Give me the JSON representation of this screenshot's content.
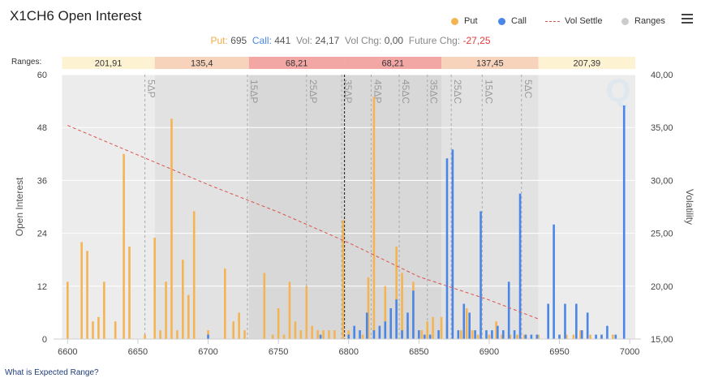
{
  "title": "X1CH6 Open Interest",
  "legend": [
    {
      "label": "Put",
      "color": "#f5b453",
      "kind": "dot"
    },
    {
      "label": "Call",
      "color": "#4a86e8",
      "kind": "dot"
    },
    {
      "label": "Vol Settle",
      "color": "#d9534f",
      "kind": "dash"
    },
    {
      "label": "Ranges",
      "color": "#cccccc",
      "kind": "dot"
    }
  ],
  "summary": {
    "put_label": "Put:",
    "put_value": "695",
    "call_label": "Call:",
    "call_value": "441",
    "vol_label": "Vol:",
    "vol_value": "24,17",
    "volchg_label": "Vol Chg:",
    "volchg_value": "0,00",
    "futchg_label": "Future Chg:",
    "futchg_value": "-27,25"
  },
  "ranges_label": "Ranges:",
  "range_boxes": [
    {
      "label": "201,91",
      "from": 6596,
      "to": 6662,
      "color": "#fdf3d3"
    },
    {
      "label": "135,4",
      "from": 6662,
      "to": 6729,
      "color": "#f7d3bb"
    },
    {
      "label": "68,21",
      "from": 6729,
      "to": 6797,
      "color": "#f2a7a5"
    },
    {
      "label": "68,21",
      "from": 6797,
      "to": 6866,
      "color": "#f2a7a5"
    },
    {
      "label": "137,45",
      "from": 6866,
      "to": 6935,
      "color": "#f7d3bb"
    },
    {
      "label": "207,39",
      "from": 6935,
      "to": 7004,
      "color": "#fdf3d3"
    }
  ],
  "footer_link": "What is Expected Range?",
  "chart_data": {
    "type": "bar",
    "x_axis": {
      "ticks": [
        6600,
        6650,
        6700,
        6750,
        6800,
        6850,
        6900,
        6950,
        7000
      ],
      "range": [
        6590,
        7008
      ]
    },
    "y_left": {
      "label": "Open Interest",
      "range": [
        0,
        60
      ],
      "ticks": [
        0,
        12,
        24,
        36,
        48,
        60
      ]
    },
    "y_right": {
      "label": "Volatility",
      "range": [
        15,
        40
      ],
      "ticks": [
        "15,00",
        "20,00",
        "25,00",
        "30,00",
        "35,00",
        "40,00"
      ]
    },
    "range_bands": [
      {
        "from": 6596,
        "to": 6662,
        "color": "#ececec"
      },
      {
        "from": 6662,
        "to": 6729,
        "color": "#e2e2e2"
      },
      {
        "from": 6729,
        "to": 6797,
        "color": "#d8d8d8"
      },
      {
        "from": 6797,
        "to": 6866,
        "color": "#d8d8d8"
      },
      {
        "from": 6866,
        "to": 6935,
        "color": "#e2e2e2"
      },
      {
        "from": 6935,
        "to": 7004,
        "color": "#ececec"
      }
    ],
    "delta_lines": [
      {
        "label": "5ΔP",
        "x": 6655
      },
      {
        "label": "15ΔP",
        "x": 6728
      },
      {
        "label": "25ΔP",
        "x": 6770
      },
      {
        "label": "35ΔP",
        "x": 6795
      },
      {
        "label": "45ΔP",
        "x": 6816
      },
      {
        "label": "45ΔC",
        "x": 6836
      },
      {
        "label": "35ΔC",
        "x": 6856
      },
      {
        "label": "25ΔC",
        "x": 6873
      },
      {
        "label": "15ΔC",
        "x": 6895
      },
      {
        "label": "5ΔC",
        "x": 6923
      }
    ],
    "settle_line": 6797,
    "series": [
      {
        "name": "Put",
        "color": "#f5b453",
        "points": [
          [
            6600,
            13
          ],
          [
            6610,
            22
          ],
          [
            6614,
            20
          ],
          [
            6618,
            4
          ],
          [
            6622,
            5
          ],
          [
            6626,
            13
          ],
          [
            6634,
            4
          ],
          [
            6640,
            42
          ],
          [
            6644,
            21
          ],
          [
            6655,
            1
          ],
          [
            6662,
            23
          ],
          [
            6666,
            2
          ],
          [
            6670,
            13
          ],
          [
            6674,
            50
          ],
          [
            6678,
            2
          ],
          [
            6682,
            18
          ],
          [
            6686,
            10
          ],
          [
            6690,
            29
          ],
          [
            6700,
            2
          ],
          [
            6712,
            16
          ],
          [
            6718,
            4
          ],
          [
            6722,
            6
          ],
          [
            6726,
            2
          ],
          [
            6740,
            15
          ],
          [
            6746,
            1
          ],
          [
            6750,
            7
          ],
          [
            6754,
            1
          ],
          [
            6758,
            13
          ],
          [
            6762,
            4
          ],
          [
            6766,
            2
          ],
          [
            6770,
            12
          ],
          [
            6774,
            3
          ],
          [
            6778,
            2
          ],
          [
            6782,
            2
          ],
          [
            6786,
            2
          ],
          [
            6790,
            2
          ],
          [
            6796,
            27
          ],
          [
            6800,
            2
          ],
          [
            6810,
            1
          ],
          [
            6814,
            14
          ],
          [
            6818,
            55
          ],
          [
            6822,
            3
          ],
          [
            6826,
            12
          ],
          [
            6830,
            3
          ],
          [
            6834,
            21
          ],
          [
            6838,
            15
          ],
          [
            6842,
            3
          ],
          [
            6846,
            13
          ],
          [
            6852,
            2
          ],
          [
            6856,
            4
          ],
          [
            6860,
            5
          ],
          [
            6866,
            5
          ],
          [
            6870,
            4
          ],
          [
            6880,
            2
          ],
          [
            6884,
            7
          ],
          [
            6888,
            2
          ],
          [
            6892,
            1
          ],
          [
            6900,
            1
          ],
          [
            6905,
            4
          ],
          [
            6909,
            1
          ],
          [
            6915,
            1
          ],
          [
            6920,
            1
          ],
          [
            6925,
            1
          ],
          [
            6935,
            1
          ],
          [
            6950,
            1
          ],
          [
            6955,
            1
          ],
          [
            6960,
            1
          ],
          [
            6965,
            2
          ],
          [
            6972,
            1
          ],
          [
            6980,
            1
          ],
          [
            6988,
            1
          ]
        ]
      },
      {
        "name": "Call",
        "color": "#4a86e8",
        "points": [
          [
            6700,
            1
          ],
          [
            6780,
            1
          ],
          [
            6800,
            1
          ],
          [
            6804,
            3
          ],
          [
            6808,
            2
          ],
          [
            6813,
            6
          ],
          [
            6818,
            2
          ],
          [
            6822,
            3
          ],
          [
            6826,
            4
          ],
          [
            6830,
            7
          ],
          [
            6834,
            9
          ],
          [
            6838,
            2
          ],
          [
            6842,
            6
          ],
          [
            6846,
            11
          ],
          [
            6850,
            2
          ],
          [
            6854,
            1
          ],
          [
            6858,
            1
          ],
          [
            6864,
            2
          ],
          [
            6870,
            41
          ],
          [
            6874,
            43
          ],
          [
            6878,
            2
          ],
          [
            6882,
            8
          ],
          [
            6886,
            6
          ],
          [
            6890,
            2
          ],
          [
            6894,
            29
          ],
          [
            6898,
            2
          ],
          [
            6902,
            2
          ],
          [
            6906,
            3
          ],
          [
            6910,
            2
          ],
          [
            6914,
            13
          ],
          [
            6918,
            2
          ],
          [
            6922,
            33
          ],
          [
            6926,
            1
          ],
          [
            6930,
            1
          ],
          [
            6934,
            1
          ],
          [
            6942,
            8
          ],
          [
            6946,
            26
          ],
          [
            6950,
            1
          ],
          [
            6954,
            8
          ],
          [
            6962,
            8
          ],
          [
            6966,
            2
          ],
          [
            6970,
            6
          ],
          [
            6976,
            1
          ],
          [
            6980,
            1
          ],
          [
            6984,
            3
          ],
          [
            6990,
            1
          ],
          [
            6996,
            53
          ]
        ]
      },
      {
        "name": "Vol Settle",
        "color": "#d9534f",
        "points": [
          [
            6600,
            35.2
          ],
          [
            6650,
            32.4
          ],
          [
            6700,
            29.6
          ],
          [
            6750,
            27.0
          ],
          [
            6800,
            24.1
          ],
          [
            6850,
            20.9
          ],
          [
            6900,
            18.7
          ],
          [
            6935,
            16.9
          ]
        ]
      }
    ]
  }
}
